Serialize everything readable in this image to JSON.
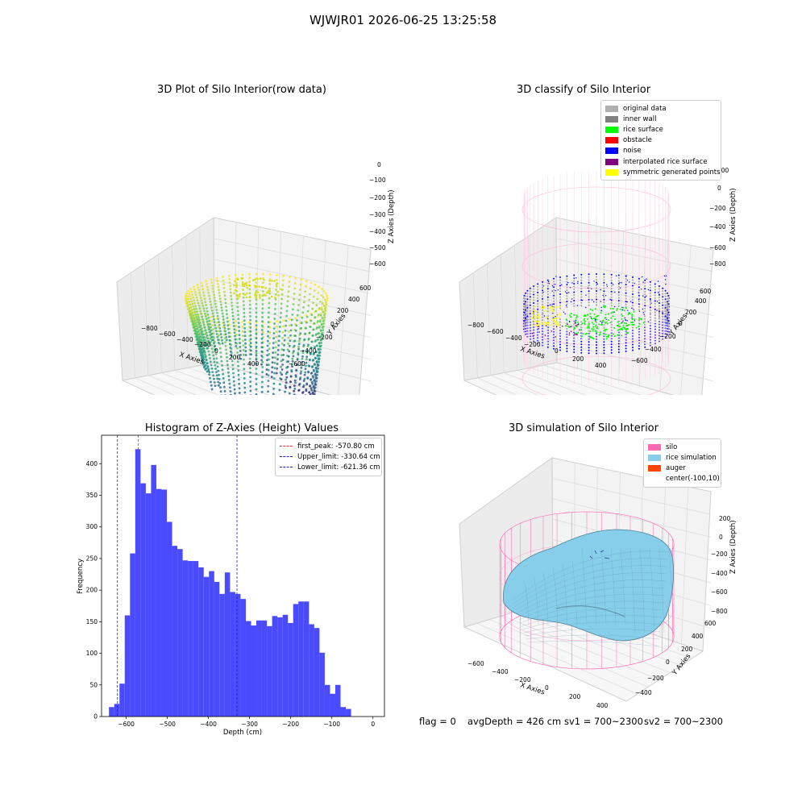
{
  "figure": {
    "suptitle": "WJWJR01 2026-06-25 13:25:58",
    "status": {
      "flag": "flag = 0",
      "avg_depth": "avgDepth = 426 cm",
      "sv1": "sv1 = 700~2300",
      "sv2": "sv2 = 700~2300"
    }
  },
  "chart_data": [
    {
      "type": "scatter",
      "projection": "3d",
      "title": "3D Plot of Silo Interior(row data)",
      "xlabel": "X Axies",
      "ylabel": "Y Axies",
      "zlabel": "Z Axies (Depth)",
      "x_ticks": [
        "−800",
        "−600",
        "−400",
        "−200",
        "0",
        "200",
        "400"
      ],
      "y_ticks": [
        "−600",
        "−400",
        "−200",
        "0",
        "200",
        "400",
        "600"
      ],
      "z_ticks": [
        "−600",
        "−500",
        "−400",
        "−300",
        "−200",
        "−100",
        "0"
      ],
      "colormap": "viridis",
      "grid": true
    },
    {
      "type": "scatter",
      "projection": "3d",
      "title": "3D classify of Silo Interior",
      "xlabel": "X Axies",
      "ylabel": "Y Axies",
      "zlabel": "Z Axies (Depth)",
      "x_ticks": [
        "−800",
        "−600",
        "−400",
        "−200",
        "0",
        "200",
        "400"
      ],
      "y_ticks": [
        "−600",
        "−400",
        "−200",
        "0",
        "200",
        "400",
        "600"
      ],
      "z_ticks": [
        "−800",
        "−600",
        "−400",
        "−200",
        "0",
        "200"
      ],
      "legend_position": "upper right",
      "legend": [
        {
          "label": "original data",
          "color": "#b0b0b0"
        },
        {
          "label": "inner wall",
          "color": "#808080"
        },
        {
          "label": "rice surface",
          "color": "#00ff00"
        },
        {
          "label": "obstacle",
          "color": "#ff0000"
        },
        {
          "label": "noise",
          "color": "#0000ff"
        },
        {
          "label": "interpolated rice surface",
          "color": "#800080"
        },
        {
          "label": "symmetric generated points",
          "color": "#ffff00"
        }
      ],
      "grid": true
    },
    {
      "type": "bar",
      "title": "Histogram of Z-Axies (Height) Values",
      "xlabel": "Depth (cm)",
      "ylabel": "Frequency",
      "xlim": [
        -660,
        28
      ],
      "ylim": [
        0,
        445
      ],
      "x_ticks": [
        -600,
        -500,
        -400,
        -300,
        -200,
        -100,
        0
      ],
      "x_tick_labels": [
        "−600",
        "−500",
        "−400",
        "−300",
        "−200",
        "−100",
        "0"
      ],
      "y_ticks": [
        0,
        50,
        100,
        150,
        200,
        250,
        300,
        350,
        400
      ],
      "y_tick_labels": [
        "0",
        "50",
        "100",
        "150",
        "200",
        "250",
        "300",
        "350",
        "400"
      ],
      "bin_start": -642,
      "bin_width": 12.8,
      "values": [
        15,
        20,
        52,
        160,
        258,
        423,
        369,
        353,
        398,
        360,
        359,
        308,
        270,
        265,
        247,
        246,
        246,
        236,
        221,
        230,
        213,
        194,
        228,
        197,
        194,
        186,
        151,
        144,
        152,
        152,
        143,
        159,
        157,
        161,
        148,
        178,
        182,
        182,
        146,
        140,
        101,
        50,
        36,
        50,
        15,
        12
      ],
      "bar_color": "#4a4aff",
      "reference_lines": [
        {
          "label": "first_peak: -570.80 cm",
          "x": -570.8,
          "color": "#e03030"
        },
        {
          "label": "Upper_limit: -330.64 cm",
          "x": -330.64,
          "color": "#2222aa"
        },
        {
          "label": "Lower_limit: -621.36 cm",
          "x": -621.36,
          "color": "#2222aa"
        }
      ],
      "legend_position": "upper right"
    },
    {
      "type": "surface",
      "projection": "3d",
      "title": "3D simulation of Silo Interior",
      "xlabel": "X Axies",
      "ylabel": "Y Axies",
      "zlabel": "Z Axies (Depth)",
      "x_ticks": [
        "−600",
        "−400",
        "−200",
        "0",
        "200",
        "400"
      ],
      "y_ticks": [
        "−400",
        "−200",
        "0",
        "200",
        "400",
        "600"
      ],
      "z_ticks": [
        "−800",
        "−600",
        "−400",
        "−200",
        "0",
        "200"
      ],
      "legend_position": "upper right",
      "legend": [
        {
          "label": "silo",
          "color": "#ff69b4"
        },
        {
          "label": "rice simulation",
          "color": "#87ceeb"
        },
        {
          "label": "auger",
          "color": "#ff4500"
        },
        {
          "label": "center(-100,10)",
          "color": ""
        }
      ],
      "grid": true
    }
  ]
}
